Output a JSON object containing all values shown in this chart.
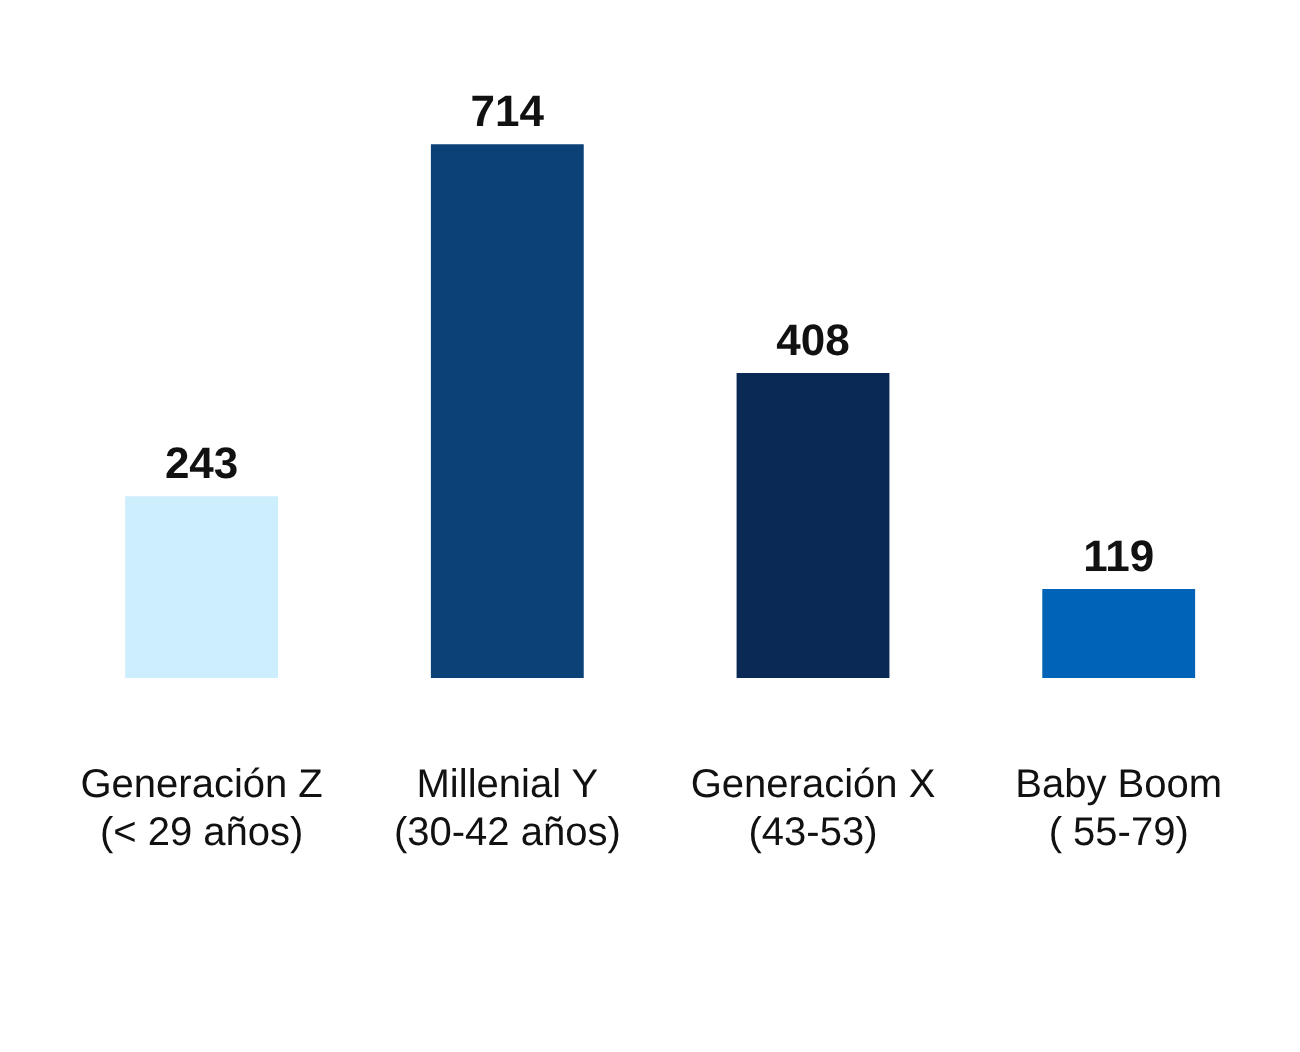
{
  "chart_data": {
    "type": "bar",
    "categories": [
      "Generación Z\n(< 29 años)",
      "Millenial Y\n(30-42 años)",
      "Generación X\n(43-53)",
      "Baby Boom\n( 55-79)"
    ],
    "values": [
      243,
      714,
      408,
      119
    ],
    "colors": [
      "#cdeefd",
      "#0b4177",
      "#0a2954",
      "#0063b8"
    ],
    "data_labels": true,
    "grid": false
  }
}
